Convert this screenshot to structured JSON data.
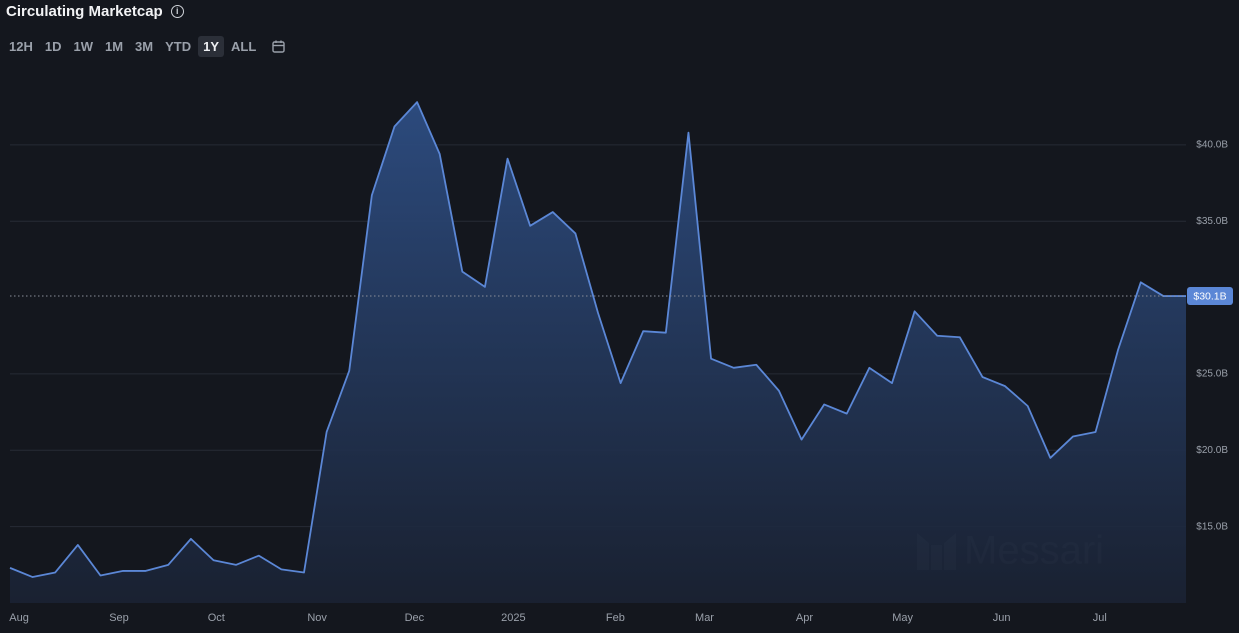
{
  "header": {
    "title": "Circulating Marketcap",
    "info_icon": "i",
    "buttons": [
      "12H",
      "1D",
      "1W",
      "1M",
      "3M",
      "YTD",
      "1Y",
      "ALL"
    ],
    "active_button": 6
  },
  "watermark": "Messari",
  "chart_data": {
    "type": "area",
    "x": [
      0,
      1,
      2,
      3,
      4,
      5,
      6,
      7,
      8,
      9,
      10,
      11,
      12,
      13,
      14,
      15,
      16,
      17,
      18,
      19,
      20,
      21,
      22,
      23,
      24,
      25,
      26,
      27,
      28,
      29,
      30,
      31,
      32,
      33,
      34,
      35,
      36,
      37,
      38,
      39,
      40,
      41,
      42,
      43,
      44,
      45,
      46,
      47,
      48,
      49,
      50,
      51,
      52
    ],
    "series": [
      {
        "name": "Circulating Marketcap",
        "color": "#5b87d6",
        "values": [
          12.3,
          11.7,
          12.0,
          13.8,
          11.8,
          12.1,
          12.1,
          12.5,
          14.2,
          12.8,
          12.5,
          13.1,
          12.2,
          12.0,
          21.2,
          25.2,
          36.7,
          41.2,
          42.8,
          39.4,
          31.7,
          30.7,
          39.1,
          34.7,
          35.6,
          34.2,
          29.0,
          24.4,
          27.8,
          27.7,
          40.8,
          26.0,
          25.4,
          25.6,
          23.9,
          20.7,
          23.0,
          22.4,
          25.4,
          24.4,
          29.1,
          27.5,
          27.4,
          24.8,
          24.2,
          22.9,
          19.5,
          20.9,
          21.2,
          26.6,
          31.0,
          30.1,
          30.1
        ]
      }
    ],
    "xlim": [
      0,
      52
    ],
    "xticks": [
      {
        "value": 0.4,
        "label": "Aug"
      },
      {
        "value": 4.82,
        "label": "Sep"
      },
      {
        "value": 9.12,
        "label": "Oct"
      },
      {
        "value": 13.58,
        "label": "Nov"
      },
      {
        "value": 17.88,
        "label": "Dec"
      },
      {
        "value": 22.26,
        "label": "2025"
      },
      {
        "value": 26.77,
        "label": "Feb"
      },
      {
        "value": 30.71,
        "label": "Mar"
      },
      {
        "value": 35.13,
        "label": "Apr"
      },
      {
        "value": 39.47,
        "label": "May"
      },
      {
        "value": 43.85,
        "label": "Jun"
      },
      {
        "value": 48.19,
        "label": "Jul"
      }
    ],
    "ylim": [
      10,
      45
    ],
    "yticks": [
      {
        "value": 15,
        "label": "$15.0B"
      },
      {
        "value": 20,
        "label": "$20.0B"
      },
      {
        "value": 25,
        "label": "$25.0B"
      },
      {
        "value": 35,
        "label": "$35.0B"
      },
      {
        "value": 40,
        "label": "$40.0B"
      }
    ],
    "grid": true,
    "last_value": {
      "value": 30.1,
      "label": "$30.1B"
    }
  }
}
